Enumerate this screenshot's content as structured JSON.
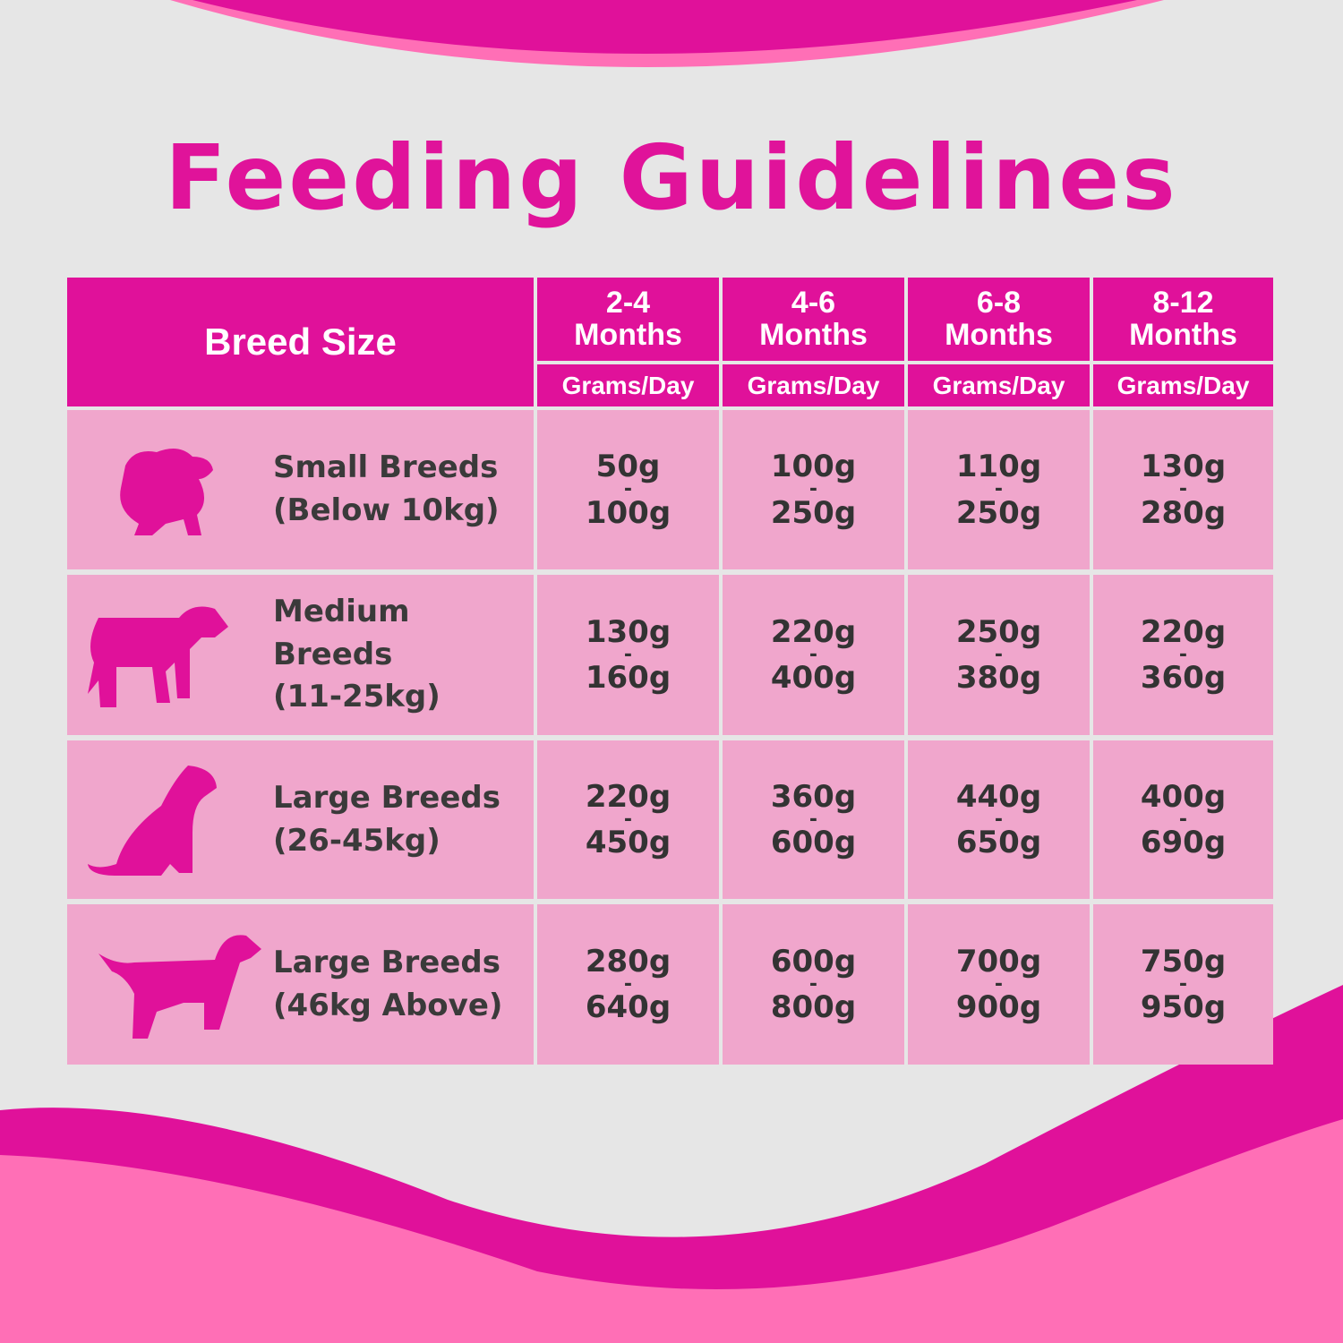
{
  "title": "Feeding Guidelines",
  "table": {
    "breed_header": "Breed Size",
    "columns": [
      {
        "period": "2-4",
        "unit": "Months",
        "subheader": "Grams/Day"
      },
      {
        "period": "4-6",
        "unit": "Months",
        "subheader": "Grams/Day"
      },
      {
        "period": "6-8",
        "unit": "Months",
        "subheader": "Grams/Day"
      },
      {
        "period": "8-12",
        "unit": "Months",
        "subheader": "Grams/Day"
      }
    ],
    "rows": [
      {
        "name": "Small Breeds",
        "weight": "(Below 10kg)",
        "cells": [
          [
            "50g",
            "-",
            "100g"
          ],
          [
            "100g",
            "-",
            "250g"
          ],
          [
            "110g",
            "-",
            "250g"
          ],
          [
            "130g",
            "-",
            "280g"
          ]
        ]
      },
      {
        "name": "Medium Breeds",
        "weight": "(11-25kg)",
        "cells": [
          [
            "130g",
            "-",
            "160g"
          ],
          [
            "220g",
            "-",
            "400g"
          ],
          [
            "250g",
            "-",
            "380g"
          ],
          [
            "220g",
            "-",
            "360g"
          ]
        ]
      },
      {
        "name": "Large Breeds",
        "weight": "(26-45kg)",
        "cells": [
          [
            "220g",
            "-",
            "450g"
          ],
          [
            "360g",
            "-",
            "600g"
          ],
          [
            "440g",
            "-",
            "650g"
          ],
          [
            "400g",
            "-",
            "690g"
          ]
        ]
      },
      {
        "name": "Large Breeds",
        "weight": "(46kg Above)",
        "cells": [
          [
            "280g",
            "-",
            "640g"
          ],
          [
            "600g",
            "-",
            "800g"
          ],
          [
            "700g",
            "-",
            "900g"
          ],
          [
            "750g",
            "-",
            "950g"
          ]
        ]
      }
    ]
  }
}
